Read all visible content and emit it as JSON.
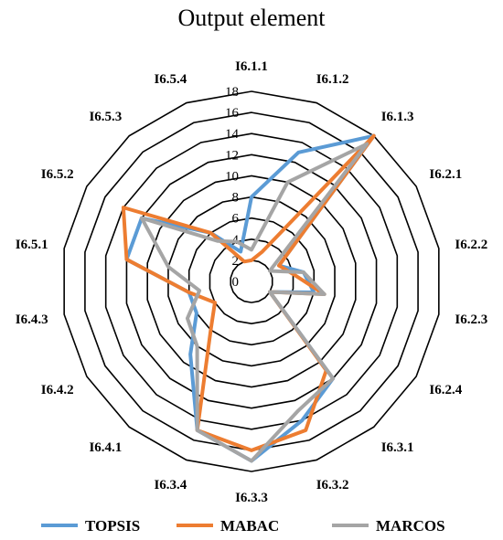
{
  "chart_data": {
    "type": "radar",
    "title": "Output element",
    "categories": [
      "I6.1.1",
      "I6.1.2",
      "I6.1.3",
      "I6.2.1",
      "I6.2.2",
      "I6.2.3",
      "I6.2.4",
      "I6.3.1",
      "I6.3.2",
      "I6.3.3",
      "I6.3.4",
      "I6.4.1",
      "I6.4.2",
      "I6.4.3",
      "I6.5.1",
      "I6.5.2",
      "I6.5.3",
      "I6.5.4"
    ],
    "rlim": [
      0,
      18
    ],
    "rticks": [
      0,
      2,
      4,
      6,
      8,
      10,
      12,
      14,
      16,
      18
    ],
    "grid": true,
    "legend": "bottom",
    "series": [
      {
        "name": "TOPSIS",
        "color": "#5B9BD5",
        "values": [
          8,
          13,
          18,
          3,
          5,
          6,
          2,
          12,
          14,
          17,
          15,
          9,
          6,
          6,
          12,
          12,
          6,
          3
        ]
      },
      {
        "name": "MABAC",
        "color": "#ED7D31",
        "values": [
          2,
          3,
          18,
          3,
          4,
          7,
          2,
          11,
          15,
          16,
          15,
          6,
          4,
          6,
          12,
          14,
          6,
          2
        ]
      },
      {
        "name": "MARCOS",
        "color": "#A5A5A5",
        "values": [
          3,
          10,
          17,
          2,
          5,
          7,
          2,
          12,
          13,
          17,
          15,
          8,
          7,
          5,
          8,
          12,
          5,
          4
        ]
      }
    ]
  }
}
